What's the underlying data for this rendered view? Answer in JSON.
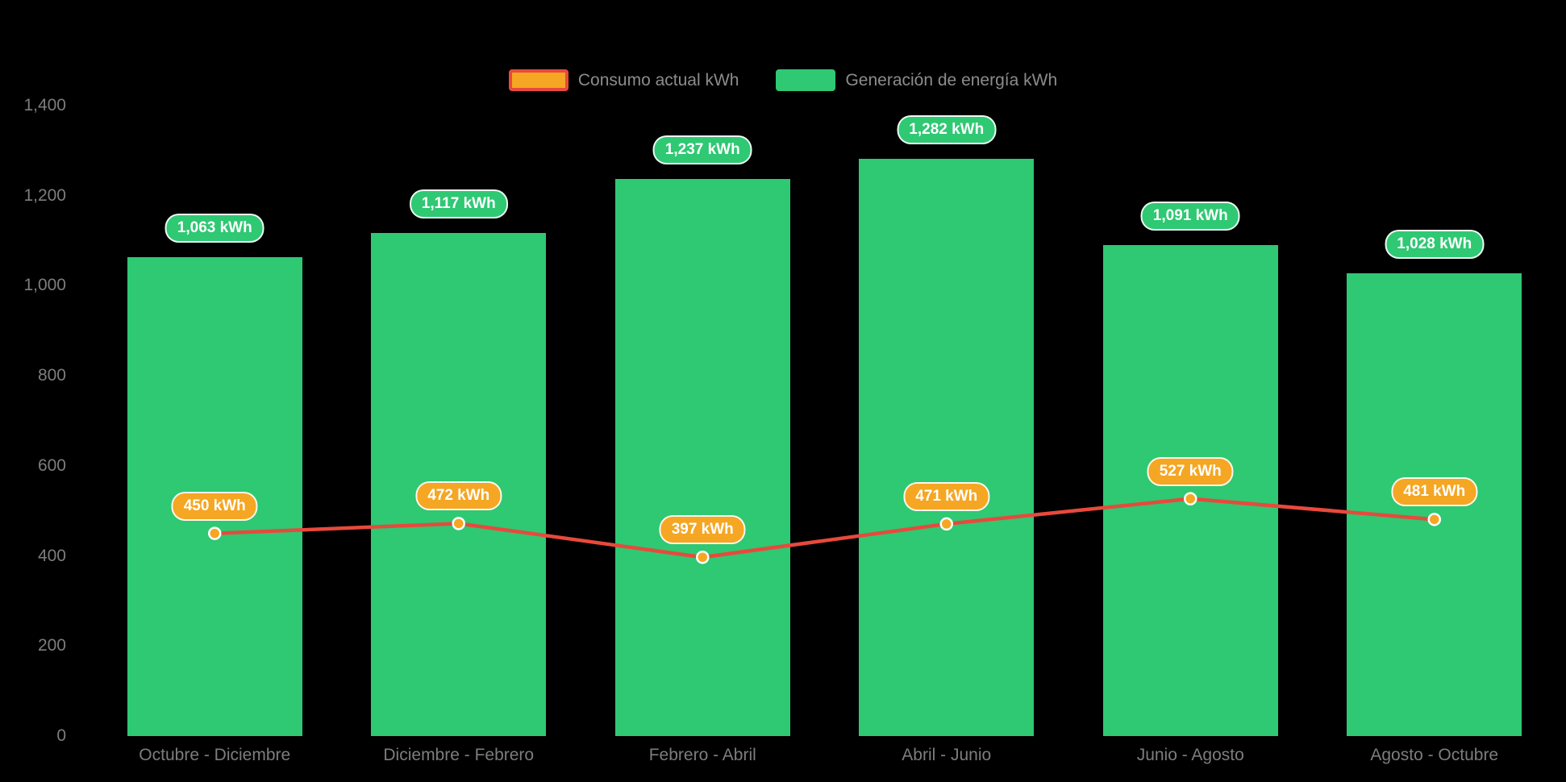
{
  "legend": {
    "items": [
      {
        "label": "Consumo actual kWh",
        "series_type": "line"
      },
      {
        "label": "Generación de energía kWh",
        "series_type": "bar"
      }
    ],
    "position": "top-center"
  },
  "colors": {
    "background": "#000000",
    "bar": "#2fc873",
    "line": "#e8493c",
    "marker": "#f5a623",
    "bar_badge_bg": "#2fc873",
    "line_badge_bg": "#f5a623",
    "badge_text": "#ffffff",
    "axis_text": "#7d7d7d",
    "legend_text": "#8c8c8c"
  },
  "chart_data": {
    "type": "bar",
    "subtype": "bar-and-line-combo",
    "title": "",
    "xlabel": "",
    "ylabel": "",
    "grid": false,
    "legend_position": "top-center",
    "categories": [
      "Octubre - Diciembre",
      "Diciembre - Febrero",
      "Febrero - Abril",
      "Abril - Junio",
      "Junio - Agosto",
      "Agosto - Octubre"
    ],
    "series": [
      {
        "name": "Consumo actual kWh",
        "type": "line",
        "values": [
          450,
          472,
          397,
          471,
          527,
          481
        ],
        "labels": [
          "450 kWh",
          "472 kWh",
          "397 kWh",
          "471 kWh",
          "527 kWh",
          "481 kWh"
        ],
        "color": "#e8493c",
        "marker_color": "#f5a623"
      },
      {
        "name": "Generación de energía kWh",
        "type": "bar",
        "values": [
          1063,
          1117,
          1237,
          1282,
          1091,
          1028
        ],
        "labels": [
          "1,063 kWh",
          "1,117 kWh",
          "1,237 kWh",
          "1,282 kWh",
          "1,091 kWh",
          "1,028 kWh"
        ],
        "color": "#2fc873"
      }
    ],
    "ylim": [
      0,
      1400
    ],
    "y_ticks": [
      {
        "value": 0,
        "label": "0"
      },
      {
        "value": 200,
        "label": "200"
      },
      {
        "value": 400,
        "label": "400"
      },
      {
        "value": 600,
        "label": "600"
      },
      {
        "value": 800,
        "label": "800"
      },
      {
        "value": 1000,
        "label": "1,000"
      },
      {
        "value": 1200,
        "label": "1,200"
      },
      {
        "value": 1400,
        "label": "1,400"
      }
    ]
  }
}
